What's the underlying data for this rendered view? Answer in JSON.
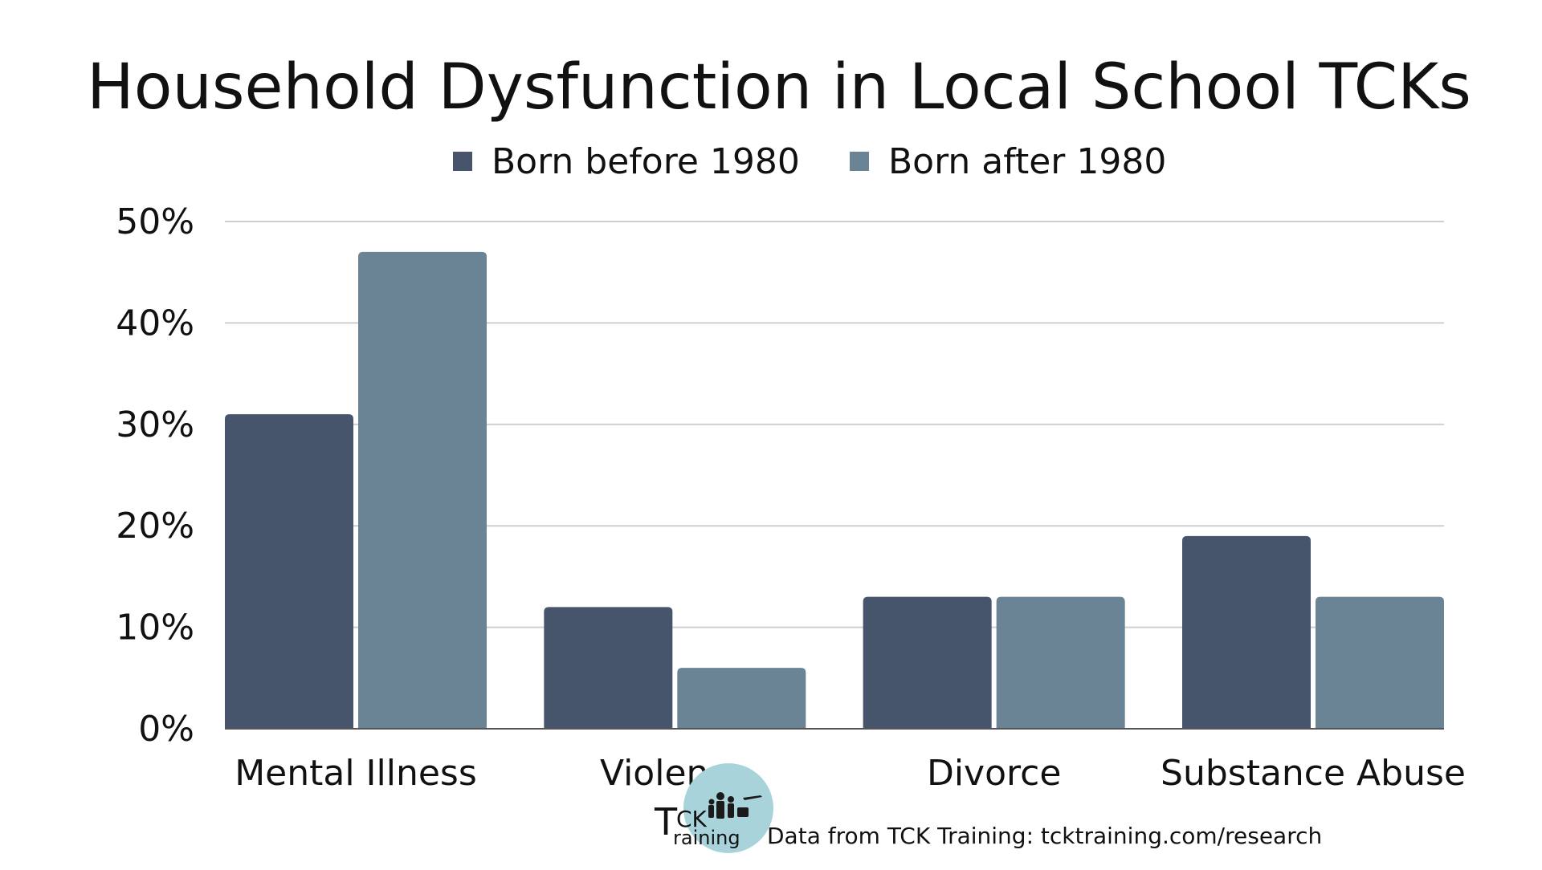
{
  "chart_data": {
    "type": "bar",
    "title": "Household Dysfunction in Local School TCKs",
    "categories": [
      "Mental Illness",
      "Violence",
      "Divorce",
      "Substance Abuse"
    ],
    "series": [
      {
        "name": "Born before 1980",
        "values": [
          31,
          12,
          13,
          19
        ],
        "color": "#46556b"
      },
      {
        "name": "Born after 1980",
        "values": [
          47,
          6,
          13,
          13
        ],
        "color": "#6a8496"
      }
    ],
    "ylim": [
      0,
      50
    ],
    "yticks": [
      "0%",
      "10%",
      "20%",
      "30%",
      "40%",
      "50%"
    ],
    "grid": true,
    "legend_position": "top-center",
    "xlabel": "",
    "ylabel": ""
  },
  "footer": {
    "logo_text_1": "CK",
    "logo_text_2": "raining",
    "logo_letter": "T",
    "source_text": "Data from TCK Training: tcktraining.com/research"
  },
  "colors": {
    "grid": "#cfcfcf",
    "axis": "#555555",
    "logo_circle": "#a9d3da"
  },
  "icons": [
    "tck-training-logo-icon"
  ]
}
